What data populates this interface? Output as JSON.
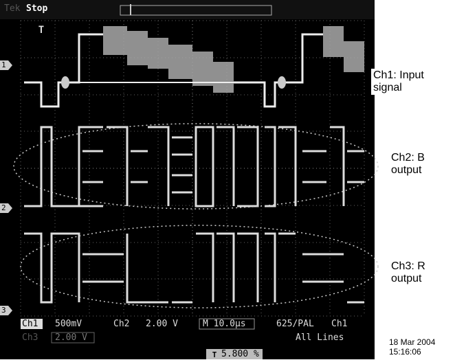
{
  "header": {
    "brand": "Tek",
    "status": "Stop"
  },
  "channel_markers": [
    "1",
    "2",
    "3"
  ],
  "annotations": [
    "Ch1: Input signal",
    "Ch2: B output",
    "Ch3: R output"
  ],
  "readout": {
    "ch1": "Ch1",
    "ch1_scale": "500mV",
    "ch2": "Ch2",
    "ch2_scale": "2.00 V",
    "timebase": "M 10.0µs",
    "standard": "625/PAL",
    "trigger_source": "Ch1",
    "ch3": "Ch3",
    "ch3_scale": "2.00 V",
    "lines": "All Lines",
    "trigger_level": "5.800 %"
  },
  "timestamp": {
    "date": "18 Mar 2004",
    "time": "15:16:06"
  }
}
